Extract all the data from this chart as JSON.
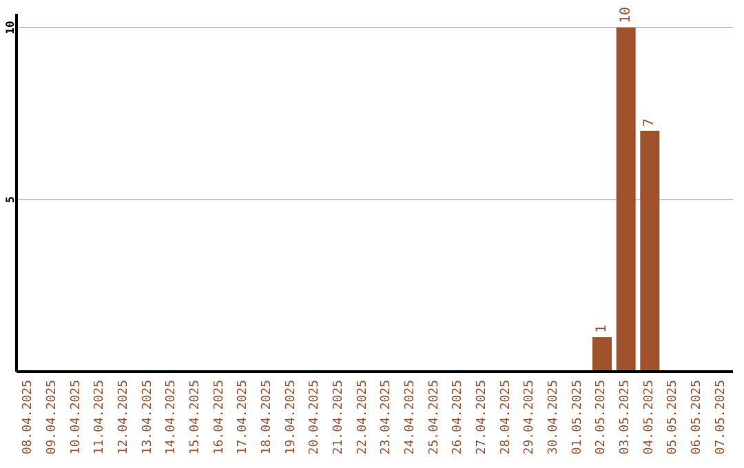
{
  "chart_data": {
    "type": "bar",
    "categories": [
      "08.04.2025",
      "09.04.2025",
      "10.04.2025",
      "11.04.2025",
      "12.04.2025",
      "13.04.2025",
      "14.04.2025",
      "15.04.2025",
      "16.04.2025",
      "17.04.2025",
      "18.04.2025",
      "19.04.2025",
      "20.04.2025",
      "21.04.2025",
      "22.04.2025",
      "23.04.2025",
      "24.04.2025",
      "25.04.2025",
      "26.04.2025",
      "27.04.2025",
      "28.04.2025",
      "29.04.2025",
      "30.04.2025",
      "01.05.2025",
      "02.05.2025",
      "03.05.2025",
      "04.05.2025",
      "05.05.2025",
      "06.05.2025",
      "07.05.2025"
    ],
    "values": [
      0,
      0,
      0,
      0,
      0,
      0,
      0,
      0,
      0,
      0,
      0,
      0,
      0,
      0,
      0,
      0,
      0,
      0,
      0,
      0,
      0,
      0,
      0,
      0,
      1,
      10,
      7,
      0,
      0,
      0
    ],
    "value_labels": [
      null,
      null,
      null,
      null,
      null,
      null,
      null,
      null,
      null,
      null,
      null,
      null,
      null,
      null,
      null,
      null,
      null,
      null,
      null,
      null,
      null,
      null,
      null,
      null,
      "1",
      "10",
      "7",
      null,
      null,
      null
    ],
    "color": "#a0522d",
    "ylim": [
      0,
      10.4
    ],
    "yticks": [
      5,
      10
    ],
    "grid": "y",
    "legend": false
  }
}
